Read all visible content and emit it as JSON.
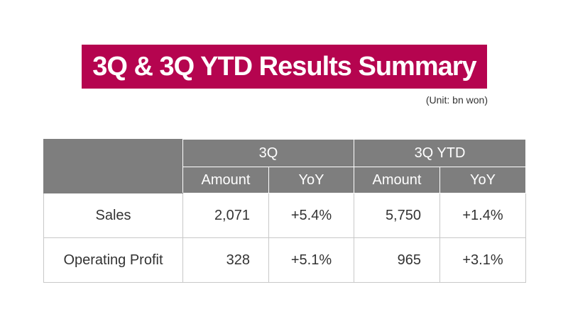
{
  "title": "3Q & 3Q YTD Results Summary",
  "unit_note": "(Unit: bn won)",
  "colors": {
    "banner": "#b5044f",
    "header": "#7e7e7e"
  },
  "chart_data": {
    "type": "table",
    "column_groups": [
      "3Q",
      "3Q YTD"
    ],
    "sub_columns": [
      "Amount",
      "YoY"
    ],
    "rows": [
      {
        "label": "Sales",
        "q3_amount": "2,071",
        "q3_yoy": "+5.4%",
        "ytd_amount": "5,750",
        "ytd_yoy": "+1.4%"
      },
      {
        "label": "Operating Profit",
        "q3_amount": "328",
        "q3_yoy": "+5.1%",
        "ytd_amount": "965",
        "ytd_yoy": "+3.1%"
      }
    ]
  }
}
